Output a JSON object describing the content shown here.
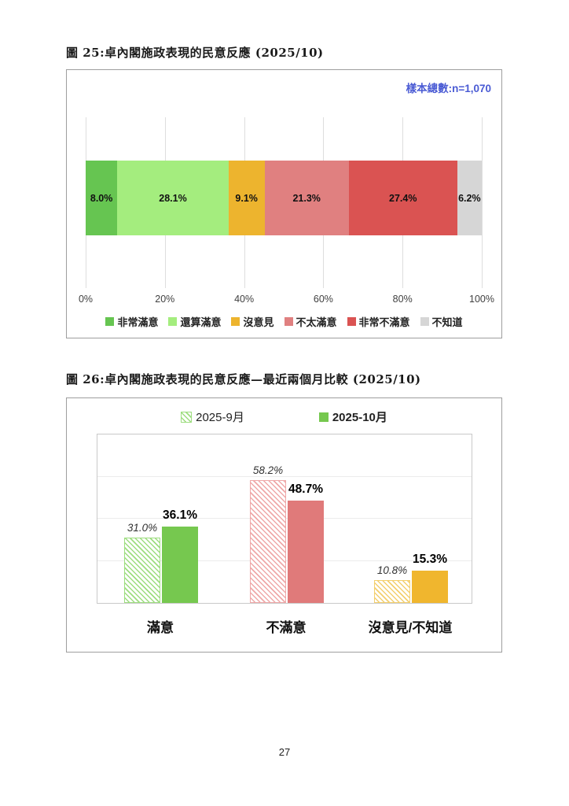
{
  "page": {
    "number": "27"
  },
  "chart_data": [
    {
      "type": "bar",
      "variant": "stacked-horizontal",
      "title": "圖 25:卓內閣施政表現的民意反應 (2025/10)",
      "sample_note": "樣本總數:n=1,070",
      "xlim": [
        0,
        100
      ],
      "x_ticks": [
        "0%",
        "20%",
        "40%",
        "60%",
        "80%",
        "100%"
      ],
      "grid": "vertical",
      "legend_position": "bottom",
      "segments": [
        {
          "label": "非常滿意",
          "value": 8.0,
          "display": "8.0%",
          "color": "#66c551"
        },
        {
          "label": "還算滿意",
          "value": 28.1,
          "display": "28.1%",
          "color": "#a4ed7e"
        },
        {
          "label": "沒意見",
          "value": 9.1,
          "display": "9.1%",
          "color": "#edb42e"
        },
        {
          "label": "不太滿意",
          "value": 21.3,
          "display": "21.3%",
          "color": "#e08080"
        },
        {
          "label": "非常不滿意",
          "value": 27.4,
          "display": "27.4%",
          "color": "#da5352"
        },
        {
          "label": "不知道",
          "value": 6.2,
          "display": "6.2%",
          "color": "#d6d6d6"
        }
      ]
    },
    {
      "type": "bar",
      "variant": "grouped-vertical",
      "title": "圖 26:卓內閣施政表現的民意反應—最近兩個月比較 (2025/10)",
      "categories": [
        "滿意",
        "不滿意",
        "沒意見/不知道"
      ],
      "series": [
        {
          "name": "2025-9月",
          "style": "hatched",
          "values": [
            31.0,
            58.2,
            10.8
          ],
          "displays": [
            "31.0%",
            "58.2%",
            "10.8%"
          ]
        },
        {
          "name": "2025-10月",
          "style": "solid",
          "values": [
            36.1,
            48.7,
            15.3
          ],
          "displays": [
            "36.1%",
            "48.7%",
            "15.3%"
          ]
        }
      ],
      "category_colors": [
        {
          "solid": "#76c84f",
          "hatch": "#9ddd7f"
        },
        {
          "solid": "#e07a7a",
          "hatch": "#efa8a8"
        },
        {
          "solid": "#f0b62e",
          "hatch": "#f3cf6e"
        }
      ],
      "ylim": [
        0,
        80
      ],
      "gridline_values": [
        20,
        40,
        60
      ],
      "grid": "horizontal",
      "legend_position": "top"
    }
  ]
}
